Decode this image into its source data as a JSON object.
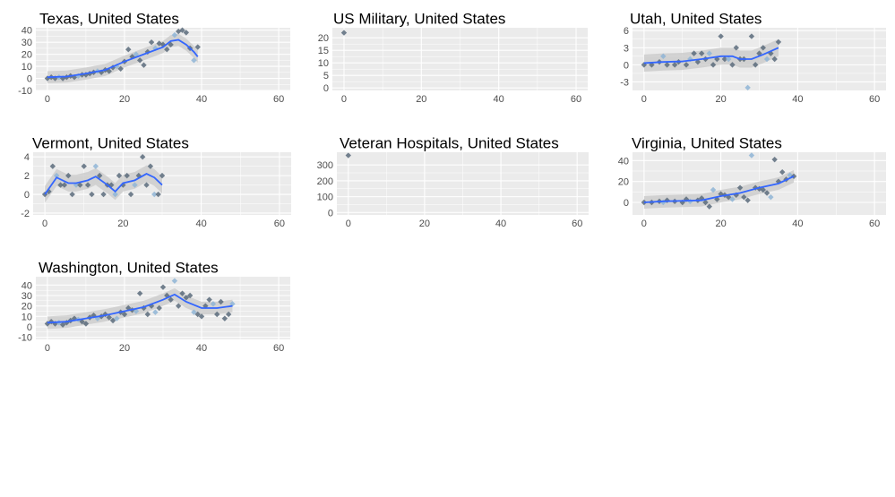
{
  "colors": {
    "panel_bg": "#ebebeb",
    "grid": "#ffffff",
    "band": "#c8c8c8",
    "line": "#3366ff",
    "point": "#5a6b7b",
    "point_light": "#8fb5d6"
  },
  "chart_data": [
    {
      "type": "scatter",
      "title": "Texas, United States",
      "xlim": [
        -3,
        63
      ],
      "ylim": [
        -10,
        42
      ],
      "xticks": [
        0,
        20,
        40,
        60
      ],
      "yticks": [
        -10,
        0,
        10,
        20,
        30,
        40
      ],
      "points": [
        [
          0,
          0
        ],
        [
          1,
          1
        ],
        [
          2,
          0
        ],
        [
          3,
          1
        ],
        [
          4,
          0
        ],
        [
          5,
          1
        ],
        [
          6,
          2
        ],
        [
          7,
          1
        ],
        [
          8,
          2
        ],
        [
          9,
          3
        ],
        [
          10,
          3
        ],
        [
          11,
          4
        ],
        [
          12,
          5
        ],
        [
          13,
          6
        ],
        [
          14,
          5
        ],
        [
          15,
          7
        ],
        [
          16,
          6
        ],
        [
          17,
          9
        ],
        [
          18,
          10
        ],
        [
          19,
          8
        ],
        [
          20,
          14
        ],
        [
          21,
          24
        ],
        [
          22,
          18
        ],
        [
          23,
          20
        ],
        [
          24,
          15
        ],
        [
          25,
          11
        ],
        [
          26,
          22
        ],
        [
          27,
          30
        ],
        [
          28,
          25
        ],
        [
          29,
          29
        ],
        [
          30,
          28
        ],
        [
          31,
          24
        ],
        [
          32,
          28
        ],
        [
          33,
          36
        ],
        [
          34,
          39
        ],
        [
          35,
          40
        ],
        [
          36,
          38
        ],
        [
          37,
          25
        ],
        [
          38,
          15
        ],
        [
          39,
          26
        ]
      ],
      "smooth": [
        [
          0,
          1
        ],
        [
          5,
          1.5
        ],
        [
          10,
          4
        ],
        [
          15,
          7
        ],
        [
          20,
          14
        ],
        [
          25,
          20
        ],
        [
          30,
          26
        ],
        [
          32,
          31
        ],
        [
          34,
          32
        ],
        [
          36,
          28
        ],
        [
          38,
          22
        ],
        [
          39,
          18
        ]
      ],
      "band_width": 5
    },
    {
      "type": "scatter",
      "title": "US Military, United States",
      "xlim": [
        -3,
        63
      ],
      "ylim": [
        -1,
        24
      ],
      "xticks": [
        0,
        20,
        40,
        60
      ],
      "yticks": [
        0,
        5,
        10,
        15,
        20
      ],
      "points": [
        [
          0,
          22
        ]
      ],
      "smooth": [],
      "band_width": 0
    },
    {
      "type": "scatter",
      "title": "Utah, United States",
      "xlim": [
        -3,
        63
      ],
      "ylim": [
        -4.5,
        6.5
      ],
      "xticks": [
        0,
        20,
        40,
        60
      ],
      "yticks": [
        -3,
        0,
        3,
        6
      ],
      "points": [
        [
          0,
          0
        ],
        [
          2,
          0
        ],
        [
          4,
          0.5
        ],
        [
          5,
          1.5
        ],
        [
          6,
          0
        ],
        [
          8,
          0
        ],
        [
          9,
          0.5
        ],
        [
          11,
          0
        ],
        [
          12,
          1
        ],
        [
          13,
          2
        ],
        [
          14,
          0.5
        ],
        [
          15,
          2
        ],
        [
          16,
          1
        ],
        [
          17,
          2
        ],
        [
          18,
          0
        ],
        [
          19,
          1
        ],
        [
          20,
          5
        ],
        [
          21,
          1
        ],
        [
          22,
          1
        ],
        [
          23,
          0
        ],
        [
          24,
          3
        ],
        [
          25,
          1
        ],
        [
          26,
          1
        ],
        [
          27,
          -4
        ],
        [
          28,
          5
        ],
        [
          29,
          0
        ],
        [
          30,
          2
        ],
        [
          31,
          3
        ],
        [
          32,
          1
        ],
        [
          33,
          2
        ],
        [
          34,
          1
        ],
        [
          35,
          4
        ]
      ],
      "smooth": [
        [
          0,
          0.3
        ],
        [
          5,
          0.5
        ],
        [
          10,
          0.6
        ],
        [
          15,
          1.0
        ],
        [
          20,
          1.5
        ],
        [
          23,
          1.5
        ],
        [
          25,
          1.0
        ],
        [
          28,
          1.0
        ],
        [
          31,
          1.8
        ],
        [
          35,
          3.0
        ]
      ],
      "band_width": 1.5
    },
    {
      "type": "scatter",
      "title": "Vermont, United States",
      "xlim": [
        -3,
        63
      ],
      "ylim": [
        -2.2,
        4.5
      ],
      "xticks": [
        0,
        20,
        40,
        60
      ],
      "yticks": [
        -2,
        0,
        2,
        4
      ],
      "points": [
        [
          0,
          0
        ],
        [
          1,
          0.3
        ],
        [
          2,
          3
        ],
        [
          3,
          2
        ],
        [
          4,
          1
        ],
        [
          5,
          1
        ],
        [
          6,
          2
        ],
        [
          7,
          0
        ],
        [
          8,
          1
        ],
        [
          9,
          1
        ],
        [
          10,
          3
        ],
        [
          11,
          1
        ],
        [
          12,
          0
        ],
        [
          13,
          3
        ],
        [
          14,
          2
        ],
        [
          15,
          0
        ],
        [
          16,
          1
        ],
        [
          17,
          1
        ],
        [
          18,
          0
        ],
        [
          19,
          2
        ],
        [
          20,
          1
        ],
        [
          21,
          2
        ],
        [
          22,
          0
        ],
        [
          23,
          1
        ],
        [
          24,
          2
        ],
        [
          25,
          4
        ],
        [
          26,
          1
        ],
        [
          27,
          3
        ],
        [
          28,
          0
        ],
        [
          29,
          0
        ],
        [
          30,
          2
        ]
      ],
      "smooth": [
        [
          0,
          0
        ],
        [
          3,
          1.8
        ],
        [
          6,
          1.2
        ],
        [
          8,
          1.2
        ],
        [
          11,
          1.5
        ],
        [
          13,
          1.9
        ],
        [
          16,
          1.0
        ],
        [
          18,
          0.3
        ],
        [
          20,
          1.2
        ],
        [
          23,
          1.5
        ],
        [
          26,
          2.2
        ],
        [
          28,
          1.8
        ],
        [
          30,
          1.0
        ]
      ],
      "band_width": 0.9
    },
    {
      "type": "scatter",
      "title": "Veteran Hospitals, United States",
      "xlim": [
        -3,
        63
      ],
      "ylim": [
        -15,
        380
      ],
      "xticks": [
        0,
        20,
        40,
        60
      ],
      "yticks": [
        0,
        100,
        200,
        300
      ],
      "points": [
        [
          0,
          360
        ]
      ],
      "smooth": [],
      "band_width": 0
    },
    {
      "type": "scatter",
      "title": "Virginia, United States",
      "xlim": [
        -3,
        63
      ],
      "ylim": [
        -12,
        48
      ],
      "xticks": [
        0,
        20,
        40,
        60
      ],
      "yticks": [
        0,
        20,
        40
      ],
      "points": [
        [
          0,
          0
        ],
        [
          2,
          0
        ],
        [
          4,
          1
        ],
        [
          5,
          0
        ],
        [
          6,
          2
        ],
        [
          8,
          1
        ],
        [
          10,
          0
        ],
        [
          11,
          3
        ],
        [
          12,
          1
        ],
        [
          14,
          2
        ],
        [
          15,
          4
        ],
        [
          16,
          0
        ],
        [
          17,
          -4
        ],
        [
          18,
          12
        ],
        [
          19,
          3
        ],
        [
          20,
          8
        ],
        [
          21,
          7
        ],
        [
          22,
          5
        ],
        [
          23,
          3
        ],
        [
          24,
          7
        ],
        [
          25,
          14
        ],
        [
          26,
          5
        ],
        [
          27,
          2
        ],
        [
          28,
          45
        ],
        [
          29,
          14
        ],
        [
          30,
          13
        ],
        [
          31,
          12
        ],
        [
          32,
          9
        ],
        [
          33,
          5
        ],
        [
          34,
          41
        ],
        [
          35,
          20
        ],
        [
          36,
          29
        ],
        [
          37,
          22
        ],
        [
          38,
          26
        ],
        [
          39,
          25
        ]
      ],
      "smooth": [
        [
          0,
          0
        ],
        [
          5,
          1
        ],
        [
          10,
          1.5
        ],
        [
          15,
          2
        ],
        [
          20,
          6
        ],
        [
          25,
          9
        ],
        [
          30,
          14
        ],
        [
          35,
          18
        ],
        [
          39,
          25
        ]
      ],
      "band_width": 6
    },
    {
      "type": "scatter",
      "title": "Washington, United States",
      "xlim": [
        -3,
        63
      ],
      "ylim": [
        -12,
        48
      ],
      "xticks": [
        0,
        20,
        40,
        60
      ],
      "yticks": [
        -10,
        0,
        10,
        20,
        30,
        40
      ],
      "points": [
        [
          0,
          3
        ],
        [
          1,
          5
        ],
        [
          2,
          3
        ],
        [
          3,
          4
        ],
        [
          4,
          2
        ],
        [
          5,
          4
        ],
        [
          6,
          6
        ],
        [
          7,
          8
        ],
        [
          8,
          7
        ],
        [
          9,
          5
        ],
        [
          10,
          3
        ],
        [
          11,
          9
        ],
        [
          12,
          11
        ],
        [
          13,
          8
        ],
        [
          14,
          10
        ],
        [
          15,
          12
        ],
        [
          16,
          9
        ],
        [
          17,
          6
        ],
        [
          18,
          8
        ],
        [
          19,
          14
        ],
        [
          20,
          12
        ],
        [
          21,
          18
        ],
        [
          22,
          16
        ],
        [
          23,
          15
        ],
        [
          24,
          32
        ],
        [
          25,
          18
        ],
        [
          26,
          12
        ],
        [
          27,
          20
        ],
        [
          28,
          14
        ],
        [
          29,
          18
        ],
        [
          30,
          38
        ],
        [
          31,
          30
        ],
        [
          32,
          26
        ],
        [
          33,
          44
        ],
        [
          34,
          20
        ],
        [
          35,
          32
        ],
        [
          36,
          28
        ],
        [
          37,
          30
        ],
        [
          38,
          14
        ],
        [
          39,
          12
        ],
        [
          40,
          10
        ],
        [
          41,
          20
        ],
        [
          42,
          26
        ],
        [
          43,
          22
        ],
        [
          44,
          12
        ],
        [
          45,
          24
        ],
        [
          46,
          8
        ],
        [
          47,
          12
        ],
        [
          48,
          22
        ]
      ],
      "smooth": [
        [
          0,
          4
        ],
        [
          5,
          5
        ],
        [
          10,
          8
        ],
        [
          15,
          11
        ],
        [
          20,
          15
        ],
        [
          25,
          19
        ],
        [
          30,
          26
        ],
        [
          33,
          31
        ],
        [
          36,
          24
        ],
        [
          40,
          18
        ],
        [
          44,
          18
        ],
        [
          48,
          20
        ]
      ],
      "band_width": 6
    }
  ]
}
